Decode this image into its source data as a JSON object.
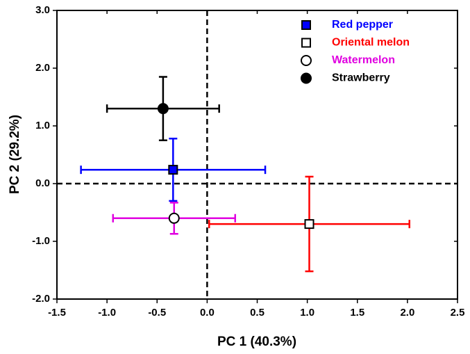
{
  "chart_data": {
    "type": "scatter",
    "x_label": "PC 1 (40.3%)",
    "y_label": "PC 2 (29.2%)",
    "xlim": [
      -1.5,
      2.5
    ],
    "ylim": [
      -2.0,
      3.0
    ],
    "xticks": [
      -1.5,
      {
        "value": -1.0,
        "label": "-1.0"
      },
      -0.5,
      {
        "value": 0.0,
        "label": "0.0"
      },
      0.5,
      {
        "value": 1.0,
        "label": "1.0"
      },
      1.5,
      {
        "value": 2.0,
        "label": "2.0"
      },
      2.5
    ],
    "yticks": [
      {
        "value": 3.0,
        "label": "3.0"
      },
      {
        "value": 2.0,
        "label": "2.0"
      },
      {
        "value": 1.0,
        "label": "1.0"
      },
      {
        "value": 0.0,
        "label": "0.0"
      },
      {
        "value": -1.0,
        "label": "-1.0"
      },
      {
        "value": -2.0,
        "label": "-2.0"
      }
    ],
    "zero_lines": true,
    "legend": "upper right",
    "series": [
      {
        "name": "Red pepper",
        "color": "#0000ff",
        "marker": "square",
        "marker_fill": "#0000ff",
        "x": [
          -0.34
        ],
        "y": [
          0.24
        ],
        "xerr": [
          0.92
        ],
        "yerr": [
          0.54
        ]
      },
      {
        "name": "Oriental melon",
        "color": "#ff0000",
        "marker": "square",
        "marker_fill": "#ffffff",
        "x": [
          1.02
        ],
        "y": [
          -0.7
        ],
        "xerr": [
          1.0
        ],
        "yerr": [
          0.82
        ]
      },
      {
        "name": "Watermelon",
        "color": "#e000e0",
        "marker": "circle",
        "marker_fill": "#ffffff",
        "x": [
          -0.33
        ],
        "y": [
          -0.6
        ],
        "xerr": [
          0.61
        ],
        "yerr": [
          0.27
        ]
      },
      {
        "name": "Strawberry",
        "color": "#000000",
        "marker": "circle",
        "marker_fill": "#000000",
        "x": [
          -0.44
        ],
        "y": [
          1.3
        ],
        "xerr": [
          0.56
        ],
        "yerr": [
          0.55
        ]
      }
    ]
  }
}
